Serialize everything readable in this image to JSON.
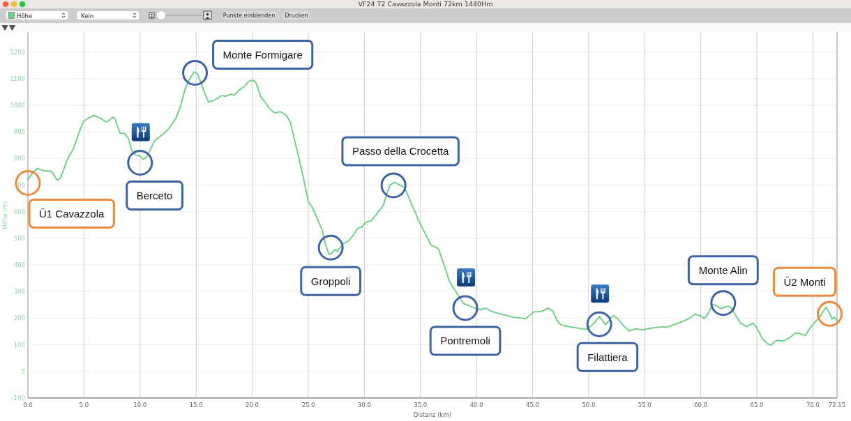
{
  "chart_data": {
    "type": "line",
    "title": "VF24 T2 Cavazzola Monti 72km 1440Hm",
    "xlabel": "Distanz (km)",
    "ylabel": "Höhe (m)",
    "x": [
      0,
      0.35,
      0.83,
      1.1,
      1.5,
      2.1,
      2.3,
      2.55,
      2.7,
      2.95,
      3.5,
      4.05,
      4.7,
      5.0,
      5.35,
      5.9,
      6.45,
      7.0,
      7.25,
      7.55,
      7.75,
      8.2,
      8.6,
      8.95,
      9.25,
      9.6,
      10.0,
      10.3,
      10.55,
      10.9,
      11.3,
      11.9,
      12.5,
      13.2,
      13.6,
      14.05,
      14.35,
      14.8,
      15.1,
      15.45,
      15.8,
      16.1,
      16.4,
      17.0,
      17.3,
      17.6,
      18.1,
      18.4,
      18.8,
      19.3,
      19.7,
      20.1,
      20.35,
      20.8,
      21.1,
      21.55,
      22.0,
      22.5,
      23.0,
      23.4,
      23.6,
      24.05,
      24.5,
      25.0,
      25.4,
      25.8,
      26.25,
      26.55,
      26.85,
      27.05,
      27.4,
      27.6,
      28.1,
      28.6,
      29.1,
      29.4,
      29.8,
      30.15,
      30.6,
      31.0,
      31.7,
      32.0,
      32.3,
      32.7,
      33.1,
      33.6,
      34.2,
      34.85,
      35.4,
      35.95,
      36.6,
      37.1,
      37.6,
      38.3,
      38.85,
      39.5,
      39.95,
      40.4,
      40.8,
      41.25,
      41.9,
      42.55,
      43.2,
      44.1,
      44.4,
      44.7,
      45.15,
      45.7,
      46.0,
      46.35,
      46.8,
      47.2,
      47.55,
      48.3,
      49.2,
      49.8,
      50.15,
      50.6,
      50.95,
      51.25,
      51.5,
      51.8,
      52.2,
      52.55,
      53.1,
      53.6,
      54.2,
      54.8,
      55.7,
      56.6,
      57.0,
      57.7,
      58.3,
      58.9,
      59.5,
      60.1,
      60.3,
      60.6,
      61.05,
      61.4,
      61.8,
      62.35,
      62.7,
      63.0,
      63.55,
      64.1,
      64.65,
      65.0,
      65.5,
      66.05,
      66.3,
      66.6,
      66.9,
      67.35,
      67.9,
      68.4,
      68.8,
      69.3,
      69.75,
      70.2,
      70.6,
      70.95,
      71.15,
      71.5,
      71.7,
      71.9,
      72.15
    ],
    "series": [
      {
        "name": "Höhe",
        "color": "#72d08a",
        "values": [
          720,
          742,
          763,
          758,
          753,
          752,
          740,
          722,
          719,
          731,
          795,
          836,
          914,
          941,
          951,
          962,
          951,
          937,
          943,
          955,
          951,
          896,
          894,
          877,
          831,
          813,
          809,
          797,
          804,
          831,
          868,
          886,
          909,
          951,
          996,
          1065,
          1093,
          1125,
          1120,
          1083,
          1042,
          1013,
          1015,
          1028,
          1037,
          1033,
          1042,
          1037,
          1056,
          1070,
          1090,
          1094,
          1083,
          1028,
          1015,
          987,
          971,
          976,
          964,
          937,
          900,
          822,
          740,
          639,
          612,
          575,
          529,
          474,
          440,
          442,
          458,
          451,
          479,
          491,
          516,
          538,
          543,
          561,
          566,
          586,
          625,
          667,
          701,
          710,
          701,
          690,
          630,
          566,
          520,
          474,
          461,
          401,
          337,
          291,
          255,
          244,
          236,
          232,
          238,
          227,
          218,
          212,
          204,
          200,
          198,
          209,
          224,
          224,
          229,
          238,
          227,
          190,
          174,
          168,
          161,
          158,
          168,
          186,
          207,
          190,
          175,
          190,
          210,
          200,
          172,
          152,
          160,
          156,
          163,
          168,
          166,
          177,
          186,
          198,
          215,
          207,
          198,
          213,
          252,
          247,
          236,
          245,
          241,
          218,
          181,
          168,
          181,
          163,
          122,
          101,
          99,
          113,
          117,
          114,
          126,
          143,
          143,
          134,
          163,
          186,
          204,
          227,
          241,
          218,
          197,
          204,
          190
        ]
      }
    ],
    "xlim": [
      0,
      72.15
    ],
    "xticks": [
      {
        "value": 0,
        "label": "0.0"
      },
      {
        "value": 5,
        "label": "5.0"
      },
      {
        "value": 10,
        "label": "10.0"
      },
      {
        "value": 15,
        "label": "15.0"
      },
      {
        "value": 20,
        "label": "20.0"
      },
      {
        "value": 25,
        "label": "25.0"
      },
      {
        "value": 30,
        "label": "30.0"
      },
      {
        "value": 35,
        "label": "35.0"
      },
      {
        "value": 40,
        "label": "40.0"
      },
      {
        "value": 45,
        "label": "45.0"
      },
      {
        "value": 50,
        "label": "50.0"
      },
      {
        "value": 55,
        "label": "55.0"
      },
      {
        "value": 60,
        "label": "60.0"
      },
      {
        "value": 65,
        "label": "65.0"
      },
      {
        "value": 70,
        "label": "70.0"
      },
      {
        "value": 72.15,
        "label": "72.15"
      }
    ],
    "ylim": [
      -100,
      1275
    ],
    "yticks": [
      -100,
      0,
      100,
      200,
      300,
      400,
      500,
      600,
      700,
      800,
      900,
      1000,
      1100,
      1200
    ],
    "grid": true,
    "legend": "top left",
    "annotations": [
      "Kein",
      "Punkte einblenden",
      "Drucken",
      {
        "text": "Ü1 Cavazzola",
        "x": 0,
        "y": 708
      },
      {
        "text": "Berceto",
        "x": 10.0,
        "y": 784
      },
      {
        "text": "Monte Formigare",
        "x": 14.9,
        "y": 1122
      },
      {
        "text": "Groppoli",
        "x": 27.0,
        "y": 465
      },
      {
        "text": "Passo della Crocetta",
        "x": 32.6,
        "y": 699
      },
      {
        "text": "Pontremoli",
        "x": 39.0,
        "y": 238
      },
      {
        "text": "Filattiera",
        "x": 50.95,
        "y": 177
      },
      {
        "text": "Monte Alin",
        "x": 62.0,
        "y": 257
      },
      {
        "text": "Ü2 Monti",
        "x": 71.5,
        "y": 216
      }
    ]
  }
}
